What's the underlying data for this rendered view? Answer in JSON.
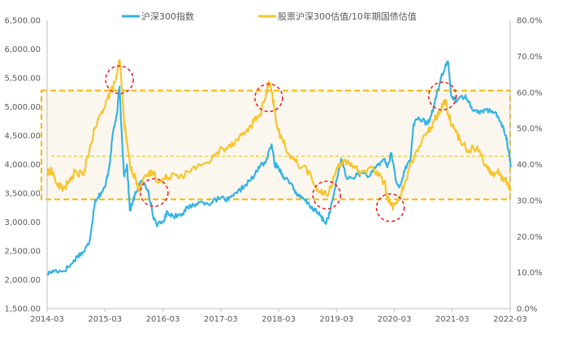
{
  "chart_data": {
    "type": "line",
    "title": "",
    "xlabel": "",
    "ylabel_left": "",
    "ylabel_right": "",
    "x_range": [
      "2014-03",
      "2022-03"
    ],
    "x_ticks": [
      "2014-03",
      "2015-03",
      "2016-03",
      "2017-03",
      "2018-03",
      "2019-03",
      "2020-03",
      "2021-03",
      "2022-03"
    ],
    "y_left": {
      "min": 1500,
      "max": 6500,
      "ticks": [
        "1,500.00",
        "2,000.00",
        "2,500.00",
        "3,000.00",
        "3,500.00",
        "4,000.00",
        "4,500.00",
        "5,000.00",
        "5,500.00",
        "6,000.00",
        "6,500.00"
      ]
    },
    "y_right": {
      "min": 0,
      "max": 80,
      "ticks": [
        "0.0%",
        "10.0%",
        "20.0%",
        "30.0%",
        "40.0%",
        "50.0%",
        "60.0%",
        "70.0%",
        "80.0%"
      ]
    },
    "series": [
      {
        "name": "沪深300指数",
        "axis": "left",
        "color": "#35b3e4",
        "points": [
          [
            2014.17,
            2100
          ],
          [
            2014.3,
            2160
          ],
          [
            2014.45,
            2150
          ],
          [
            2014.6,
            2280
          ],
          [
            2014.7,
            2420
          ],
          [
            2014.8,
            2480
          ],
          [
            2014.9,
            2650
          ],
          [
            2015.0,
            3380
          ],
          [
            2015.1,
            3500
          ],
          [
            2015.17,
            3600
          ],
          [
            2015.25,
            4000
          ],
          [
            2015.3,
            4500
          ],
          [
            2015.38,
            4900
          ],
          [
            2015.42,
            5350
          ],
          [
            2015.45,
            4700
          ],
          [
            2015.5,
            3800
          ],
          [
            2015.55,
            4000
          ],
          [
            2015.6,
            3200
          ],
          [
            2015.65,
            3350
          ],
          [
            2015.7,
            3500
          ],
          [
            2015.78,
            3700
          ],
          [
            2015.85,
            3650
          ],
          [
            2015.92,
            3550
          ],
          [
            2016.0,
            3100
          ],
          [
            2016.08,
            2950
          ],
          [
            2016.17,
            3000
          ],
          [
            2016.25,
            3180
          ],
          [
            2016.35,
            3100
          ],
          [
            2016.5,
            3150
          ],
          [
            2016.6,
            3250
          ],
          [
            2016.7,
            3300
          ],
          [
            2016.85,
            3350
          ],
          [
            2017.0,
            3330
          ],
          [
            2017.17,
            3420
          ],
          [
            2017.3,
            3380
          ],
          [
            2017.45,
            3500
          ],
          [
            2017.6,
            3650
          ],
          [
            2017.75,
            3800
          ],
          [
            2017.85,
            3980
          ],
          [
            2017.95,
            4050
          ],
          [
            2018.05,
            4350
          ],
          [
            2018.1,
            4000
          ],
          [
            2018.17,
            3950
          ],
          [
            2018.25,
            3800
          ],
          [
            2018.4,
            3650
          ],
          [
            2018.5,
            3450
          ],
          [
            2018.6,
            3400
          ],
          [
            2018.7,
            3300
          ],
          [
            2018.8,
            3200
          ],
          [
            2018.9,
            3100
          ],
          [
            2018.98,
            2980
          ],
          [
            2019.05,
            3150
          ],
          [
            2019.15,
            3600
          ],
          [
            2019.25,
            4100
          ],
          [
            2019.35,
            3750
          ],
          [
            2019.5,
            3800
          ],
          [
            2019.6,
            3850
          ],
          [
            2019.75,
            3800
          ],
          [
            2019.85,
            3950
          ],
          [
            2020.0,
            4100
          ],
          [
            2020.05,
            3950
          ],
          [
            2020.12,
            4200
          ],
          [
            2020.2,
            3700
          ],
          [
            2020.25,
            3600
          ],
          [
            2020.35,
            3900
          ],
          [
            2020.45,
            4100
          ],
          [
            2020.5,
            4700
          ],
          [
            2020.6,
            4800
          ],
          [
            2020.75,
            4700
          ],
          [
            2020.85,
            5000
          ],
          [
            2020.95,
            5400
          ],
          [
            2021.05,
            5700
          ],
          [
            2021.1,
            5780
          ],
          [
            2021.15,
            5200
          ],
          [
            2021.25,
            5100
          ],
          [
            2021.4,
            5200
          ],
          [
            2021.5,
            5000
          ],
          [
            2021.6,
            4900
          ],
          [
            2021.75,
            4950
          ],
          [
            2021.9,
            4900
          ],
          [
            2022.0,
            4750
          ],
          [
            2022.1,
            4500
          ],
          [
            2022.15,
            4200
          ],
          [
            2022.18,
            3950
          ]
        ]
      },
      {
        "name": "股票沪深300估值/10年期国债估值",
        "axis": "right",
        "color": "#f7c42c",
        "points": [
          [
            2014.17,
            37.5
          ],
          [
            2014.25,
            38.5
          ],
          [
            2014.35,
            34
          ],
          [
            2014.45,
            33.5
          ],
          [
            2014.55,
            35
          ],
          [
            2014.65,
            38
          ],
          [
            2014.8,
            37
          ],
          [
            2014.9,
            44
          ],
          [
            2015.0,
            50
          ],
          [
            2015.1,
            54
          ],
          [
            2015.2,
            58
          ],
          [
            2015.3,
            61
          ],
          [
            2015.38,
            65
          ],
          [
            2015.42,
            69
          ],
          [
            2015.45,
            64
          ],
          [
            2015.5,
            52
          ],
          [
            2015.55,
            46
          ],
          [
            2015.6,
            40
          ],
          [
            2015.7,
            36
          ],
          [
            2015.75,
            33
          ],
          [
            2015.8,
            34.5
          ],
          [
            2015.9,
            37
          ],
          [
            2016.0,
            38
          ],
          [
            2016.1,
            35
          ],
          [
            2016.2,
            36
          ],
          [
            2016.35,
            37.5
          ],
          [
            2016.5,
            37
          ],
          [
            2016.65,
            38
          ],
          [
            2016.8,
            40
          ],
          [
            2017.0,
            41
          ],
          [
            2017.15,
            44
          ],
          [
            2017.3,
            45
          ],
          [
            2017.45,
            47
          ],
          [
            2017.6,
            49
          ],
          [
            2017.75,
            52
          ],
          [
            2017.85,
            54
          ],
          [
            2017.95,
            59
          ],
          [
            2018.0,
            63
          ],
          [
            2018.05,
            60
          ],
          [
            2018.1,
            55
          ],
          [
            2018.15,
            50
          ],
          [
            2018.25,
            46
          ],
          [
            2018.35,
            43
          ],
          [
            2018.5,
            40
          ],
          [
            2018.65,
            39
          ],
          [
            2018.8,
            34
          ],
          [
            2018.9,
            32
          ],
          [
            2019.0,
            31.5
          ],
          [
            2019.1,
            35
          ],
          [
            2019.2,
            40
          ],
          [
            2019.3,
            41
          ],
          [
            2019.45,
            39
          ],
          [
            2019.6,
            38
          ],
          [
            2019.8,
            39
          ],
          [
            2019.9,
            37
          ],
          [
            2020.0,
            35
          ],
          [
            2020.05,
            31
          ],
          [
            2020.1,
            29
          ],
          [
            2020.15,
            28.5
          ],
          [
            2020.25,
            30
          ],
          [
            2020.35,
            35
          ],
          [
            2020.45,
            40
          ],
          [
            2020.6,
            45
          ],
          [
            2020.75,
            49
          ],
          [
            2020.85,
            52
          ],
          [
            2020.95,
            55
          ],
          [
            2021.05,
            58
          ],
          [
            2021.1,
            54
          ],
          [
            2021.2,
            50
          ],
          [
            2021.3,
            47
          ],
          [
            2021.45,
            44
          ],
          [
            2021.6,
            45
          ],
          [
            2021.75,
            40
          ],
          [
            2021.85,
            37
          ],
          [
            2021.95,
            38
          ],
          [
            2022.05,
            36
          ],
          [
            2022.12,
            35
          ],
          [
            2022.18,
            33
          ]
        ]
      }
    ],
    "annotations": {
      "band_upper_pct": 60.5,
      "band_lower_pct": 30.3,
      "mean_line_pct": 42.3,
      "circles": [
        {
          "x": 2015.42,
          "y_pct": 63.5
        },
        {
          "x": 2016.02,
          "y_pct": 32.2
        },
        {
          "x": 2018.0,
          "y_pct": 58.5
        },
        {
          "x": 2019.0,
          "y_pct": 31.5
        },
        {
          "x": 2020.1,
          "y_pct": 28.0
        },
        {
          "x": 2021.0,
          "y_pct": 59.0
        }
      ]
    },
    "legend_position": "top"
  },
  "legend": {
    "items": [
      {
        "label": "沪深300指数",
        "color": "#35b3e4"
      },
      {
        "label": "股票沪深300估值/10年期国债估值",
        "color": "#f7c42c"
      }
    ]
  }
}
